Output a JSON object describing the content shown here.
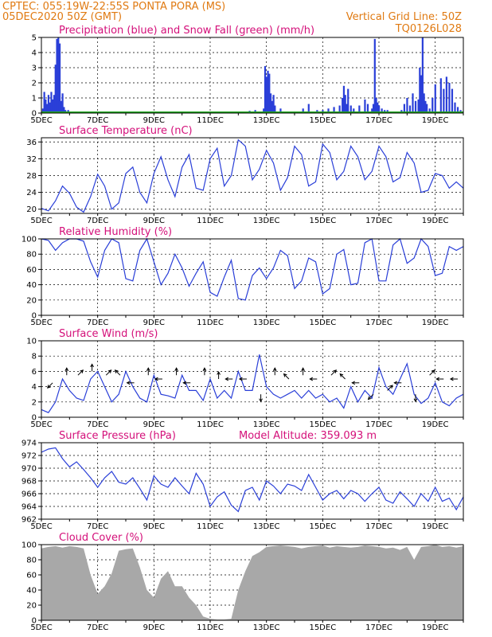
{
  "header": {
    "line1": "CPTEC:   055:19W-22:55S   PONTA PORA (MS)",
    "line2": "05DEC2020 50Z (GMT)",
    "grid_note": "Vertical Grid Line: 50Z",
    "code": "TQ0126L028"
  },
  "colors": {
    "header": "#e07a12",
    "title": "#d4107a",
    "line": "#2a3fd8",
    "snow": "#22aa22",
    "cloud": "#a8a8a8"
  },
  "x_dates": [
    "5DEC",
    "7DEC",
    "9DEC",
    "11DEC",
    "13DEC",
    "15DEC",
    "17DEC",
    "19DEC"
  ],
  "chart_data": [
    {
      "id": "precip",
      "type": "bar",
      "title": "Precipitation (blue) and Snow Fall (green) (mm/h)",
      "ylim": [
        0,
        5
      ],
      "yticks": [
        0,
        1,
        2,
        3,
        4,
        5
      ],
      "x": [
        5.05,
        5.1,
        5.15,
        5.2,
        5.25,
        5.3,
        5.35,
        5.4,
        5.45,
        5.5,
        5.55,
        5.6,
        5.65,
        5.7,
        5.75,
        5.8,
        5.85,
        5.9,
        5.95,
        6.0,
        12.2,
        12.4,
        12.6,
        12.9,
        12.95,
        13.0,
        13.05,
        13.1,
        13.15,
        13.2,
        13.25,
        13.3,
        13.5,
        14.3,
        14.5,
        14.8,
        15.0,
        15.2,
        15.4,
        15.6,
        15.7,
        15.75,
        15.8,
        15.85,
        15.9,
        16.0,
        16.1,
        16.3,
        16.5,
        16.6,
        16.75,
        16.8,
        16.85,
        16.9,
        16.95,
        17.0,
        17.1,
        17.2,
        17.3,
        17.8,
        17.9,
        18.0,
        18.1,
        18.2,
        18.3,
        18.4,
        18.45,
        18.5,
        18.55,
        18.6,
        18.65,
        18.7,
        18.8,
        18.9,
        19.0,
        19.2,
        19.3,
        19.4,
        19.5,
        19.6,
        19.7,
        19.8,
        19.9
      ],
      "precip": [
        0.3,
        1.4,
        0.9,
        0.6,
        1.2,
        0.7,
        1.4,
        0.9,
        1.2,
        3.2,
        4.9,
        5.0,
        4.6,
        0.8,
        1.3,
        0.4,
        0.2,
        0.1,
        0.2,
        0.1,
        0.1,
        0.15,
        0.2,
        0.3,
        3.1,
        2.4,
        2.8,
        2.6,
        1.3,
        0.8,
        1.2,
        0.5,
        0.3,
        0.3,
        0.6,
        0.2,
        0.2,
        0.3,
        0.4,
        0.5,
        1.0,
        1.8,
        1.2,
        0.6,
        1.6,
        0.5,
        0.3,
        0.5,
        0.9,
        0.6,
        0.3,
        0.6,
        4.9,
        1.0,
        0.7,
        0.5,
        0.3,
        0.2,
        0.2,
        0.2,
        0.6,
        1.0,
        0.5,
        1.3,
        0.8,
        0.9,
        3.0,
        2.5,
        5.0,
        1.3,
        0.8,
        0.6,
        0.3,
        1.0,
        1.9,
        2.3,
        1.6,
        2.4,
        2.0,
        1.6,
        0.7,
        0.4,
        0.2
      ],
      "snow": []
    },
    {
      "id": "temp",
      "type": "line",
      "title": "Surface Temperature (nC)",
      "ylim": [
        19,
        37
      ],
      "yticks": [
        20,
        24,
        28,
        32,
        36
      ],
      "x": [
        5.0,
        5.25,
        5.5,
        5.75,
        6.0,
        6.25,
        6.5,
        6.75,
        7.0,
        7.25,
        7.5,
        7.75,
        8.0,
        8.25,
        8.5,
        8.75,
        9.0,
        9.25,
        9.5,
        9.75,
        10.0,
        10.25,
        10.5,
        10.75,
        11.0,
        11.25,
        11.5,
        11.75,
        12.0,
        12.25,
        12.5,
        12.75,
        13.0,
        13.25,
        13.5,
        13.75,
        14.0,
        14.25,
        14.5,
        14.75,
        15.0,
        15.25,
        15.5,
        15.75,
        16.0,
        16.25,
        16.5,
        16.75,
        17.0,
        17.25,
        17.5,
        17.75,
        18.0,
        18.25,
        18.5,
        18.75,
        19.0,
        19.25,
        19.5,
        19.75,
        20.0
      ],
      "values": [
        20.2,
        19.6,
        22.0,
        25.5,
        23.8,
        20.5,
        19.3,
        23.0,
        28.3,
        25.5,
        20.0,
        21.5,
        28.5,
        30.0,
        24.0,
        21.5,
        28.5,
        32.5,
        27.0,
        23.0,
        30.0,
        33.0,
        25.0,
        24.5,
        32.0,
        34.5,
        25.5,
        28.0,
        36.5,
        35.0,
        27.0,
        29.5,
        34.0,
        31.0,
        24.5,
        27.5,
        35.0,
        33.0,
        25.5,
        26.5,
        35.5,
        33.5,
        27.0,
        29.0,
        35.0,
        32.5,
        27.0,
        29.0,
        35.0,
        32.5,
        26.5,
        27.5,
        33.5,
        31.0,
        24.0,
        24.5,
        28.5,
        28.0,
        25.0,
        26.5,
        25.0
      ]
    },
    {
      "id": "rh",
      "type": "line",
      "title": "Relative Humidity (%)",
      "ylim": [
        0,
        100
      ],
      "yticks": [
        0,
        20,
        40,
        60,
        80,
        100
      ],
      "x": [
        5.0,
        5.25,
        5.5,
        5.75,
        6.0,
        6.25,
        6.5,
        6.75,
        7.0,
        7.25,
        7.5,
        7.75,
        8.0,
        8.25,
        8.5,
        8.75,
        9.0,
        9.25,
        9.5,
        9.75,
        10.0,
        10.25,
        10.5,
        10.75,
        11.0,
        11.25,
        11.5,
        11.75,
        12.0,
        12.25,
        12.5,
        12.75,
        13.0,
        13.25,
        13.5,
        13.75,
        14.0,
        14.25,
        14.5,
        14.75,
        15.0,
        15.25,
        15.5,
        15.75,
        16.0,
        16.25,
        16.5,
        16.75,
        17.0,
        17.25,
        17.5,
        17.75,
        18.0,
        18.25,
        18.5,
        18.75,
        19.0,
        19.25,
        19.5,
        19.75,
        20.0
      ],
      "values": [
        100,
        98,
        85,
        95,
        100,
        100,
        97,
        70,
        50,
        85,
        100,
        95,
        48,
        45,
        85,
        100,
        70,
        40,
        55,
        80,
        62,
        38,
        55,
        70,
        30,
        25,
        50,
        72,
        22,
        20,
        52,
        62,
        48,
        62,
        85,
        78,
        35,
        45,
        75,
        70,
        28,
        35,
        80,
        86,
        40,
        42,
        95,
        100,
        45,
        45,
        92,
        100,
        68,
        75,
        100,
        90,
        52,
        55,
        90,
        85,
        90
      ]
    },
    {
      "id": "wind",
      "type": "line",
      "title": "Surface Wind (m/s)",
      "ylim": [
        0,
        10
      ],
      "yticks": [
        0,
        2,
        4,
        6,
        8,
        10
      ],
      "x": [
        5.0,
        5.25,
        5.5,
        5.75,
        6.0,
        6.25,
        6.5,
        6.75,
        7.0,
        7.25,
        7.5,
        7.75,
        8.0,
        8.25,
        8.5,
        8.75,
        9.0,
        9.25,
        9.5,
        9.75,
        10.0,
        10.25,
        10.5,
        10.75,
        11.0,
        11.25,
        11.5,
        11.75,
        12.0,
        12.25,
        12.5,
        12.75,
        13.0,
        13.25,
        13.5,
        13.75,
        14.0,
        14.25,
        14.5,
        14.75,
        15.0,
        15.25,
        15.5,
        15.75,
        16.0,
        16.25,
        16.5,
        16.75,
        17.0,
        17.25,
        17.5,
        17.75,
        18.0,
        18.25,
        18.5,
        18.75,
        19.0,
        19.25,
        19.5,
        19.75,
        20.0
      ],
      "values": [
        1.0,
        0.6,
        2.0,
        5.0,
        3.5,
        2.5,
        2.2,
        5.0,
        6.0,
        4.0,
        2.0,
        3.0,
        6.0,
        4.0,
        2.5,
        2.0,
        5.5,
        3.0,
        2.8,
        2.5,
        5.5,
        3.5,
        3.5,
        2.2,
        5.0,
        2.5,
        3.5,
        2.5,
        6.0,
        3.5,
        3.5,
        8.2,
        4.0,
        3.0,
        2.5,
        3.0,
        3.5,
        2.5,
        3.5,
        2.5,
        3.0,
        2.0,
        2.5,
        1.2,
        4.0,
        2.0,
        3.5,
        2.5,
        6.5,
        4.0,
        3.0,
        5.0,
        7.0,
        3.0,
        1.8,
        2.5,
        4.5,
        2.0,
        1.5,
        2.5,
        3.0
      ],
      "arrows": [
        [
          5.4,
          4.5,
          -1,
          -1
        ],
        [
          5.9,
          5.5,
          0,
          1
        ],
        [
          6.3,
          5.5,
          1,
          1
        ],
        [
          6.8,
          6.0,
          0,
          1
        ],
        [
          7.3,
          5.5,
          1,
          1
        ],
        [
          7.8,
          5.5,
          -1,
          1
        ],
        [
          8.3,
          4.5,
          -1,
          0
        ],
        [
          8.8,
          5.5,
          0,
          1
        ],
        [
          9.3,
          5.0,
          -1,
          0
        ],
        [
          9.8,
          5.5,
          0,
          1
        ],
        [
          10.3,
          4.5,
          -1,
          0
        ],
        [
          10.8,
          5.5,
          0,
          1
        ],
        [
          11.3,
          5.0,
          0,
          1
        ],
        [
          11.8,
          5.0,
          -1,
          0
        ],
        [
          12.3,
          5.0,
          -1,
          0
        ],
        [
          12.8,
          3.0,
          0,
          -1
        ],
        [
          13.3,
          5.5,
          0,
          1
        ],
        [
          13.8,
          5.0,
          -1,
          1
        ],
        [
          14.3,
          5.5,
          0,
          1
        ],
        [
          14.8,
          5.0,
          -1,
          0
        ],
        [
          15.3,
          5.5,
          1,
          1
        ],
        [
          15.8,
          5.0,
          -1,
          1
        ],
        [
          16.3,
          4.5,
          -1,
          0
        ],
        [
          16.8,
          3.0,
          -1,
          -1
        ],
        [
          17.3,
          3.5,
          1,
          1
        ],
        [
          17.8,
          4.5,
          -1,
          0
        ],
        [
          18.3,
          3.0,
          0,
          -1
        ],
        [
          18.8,
          5.5,
          1,
          1
        ],
        [
          19.3,
          5.0,
          -1,
          0
        ],
        [
          19.8,
          5.0,
          -1,
          0
        ]
      ]
    },
    {
      "id": "pressure",
      "type": "line",
      "title": "Surface Pressure (hPa)",
      "annotation": "Model Altitude: 359.093 m",
      "ylim": [
        962,
        974
      ],
      "yticks": [
        962,
        964,
        966,
        968,
        970,
        972,
        974
      ],
      "x": [
        5.0,
        5.25,
        5.5,
        5.75,
        6.0,
        6.25,
        6.5,
        6.75,
        7.0,
        7.25,
        7.5,
        7.75,
        8.0,
        8.25,
        8.5,
        8.75,
        9.0,
        9.25,
        9.5,
        9.75,
        10.0,
        10.25,
        10.5,
        10.75,
        11.0,
        11.25,
        11.5,
        11.75,
        12.0,
        12.25,
        12.5,
        12.75,
        13.0,
        13.25,
        13.5,
        13.75,
        14.0,
        14.25,
        14.5,
        14.75,
        15.0,
        15.25,
        15.5,
        15.75,
        16.0,
        16.25,
        16.5,
        16.75,
        17.0,
        17.25,
        17.5,
        17.75,
        18.0,
        18.25,
        18.5,
        18.75,
        19.0,
        19.25,
        19.5,
        19.75,
        20.0
      ],
      "values": [
        972.5,
        973.0,
        973.2,
        971.5,
        970.2,
        971.0,
        969.8,
        968.5,
        967.0,
        968.5,
        969.5,
        967.8,
        967.5,
        968.5,
        966.8,
        965.0,
        968.8,
        967.5,
        967.0,
        968.5,
        967.2,
        966.0,
        969.2,
        967.5,
        964.0,
        965.5,
        966.3,
        964.2,
        963.2,
        966.5,
        967.0,
        965.0,
        968.0,
        967.2,
        966.0,
        967.5,
        967.2,
        966.5,
        969.0,
        967.0,
        965.0,
        966.0,
        966.5,
        965.2,
        966.5,
        966.0,
        964.8,
        966.0,
        967.0,
        965.0,
        964.5,
        966.3,
        965.2,
        964.0,
        966.0,
        964.8,
        967.0,
        964.8,
        965.3,
        963.5,
        965.5
      ]
    },
    {
      "id": "cloud",
      "type": "area",
      "title": "Cloud Cover (%)",
      "ylim": [
        0,
        100
      ],
      "yticks": [
        0,
        20,
        40,
        60,
        80,
        100
      ],
      "x": [
        5.0,
        5.25,
        5.5,
        5.75,
        6.0,
        6.25,
        6.5,
        6.75,
        7.0,
        7.25,
        7.5,
        7.75,
        8.0,
        8.25,
        8.5,
        8.75,
        9.0,
        9.25,
        9.5,
        9.75,
        10.0,
        10.25,
        10.5,
        10.75,
        11.0,
        11.25,
        11.5,
        11.75,
        12.0,
        12.25,
        12.5,
        12.75,
        13.0,
        13.25,
        13.5,
        13.75,
        14.0,
        14.25,
        14.5,
        14.75,
        15.0,
        15.25,
        15.5,
        15.75,
        16.0,
        16.25,
        16.5,
        16.75,
        17.0,
        17.25,
        17.5,
        17.75,
        18.0,
        18.25,
        18.5,
        18.75,
        19.0,
        19.25,
        19.5,
        19.75,
        20.0
      ],
      "values": [
        95,
        97,
        98,
        96,
        98,
        97,
        95,
        60,
        35,
        45,
        62,
        92,
        94,
        95,
        70,
        40,
        30,
        55,
        65,
        45,
        45,
        30,
        20,
        5,
        2,
        1,
        1,
        2,
        40,
        65,
        85,
        90,
        97,
        98,
        99,
        98,
        97,
        95,
        97,
        98,
        99,
        96,
        98,
        97,
        96,
        97,
        99,
        98,
        97,
        95,
        96,
        93,
        97,
        80,
        97,
        98,
        100,
        97,
        98,
        96,
        98
      ]
    }
  ]
}
